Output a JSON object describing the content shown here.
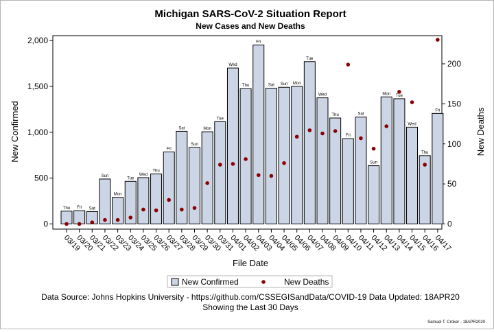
{
  "colors": {
    "bar_fill": "#cbd5e6",
    "bar_stroke": "#000000",
    "death_marker": "#8b0000",
    "axis": "#000000",
    "tick": "#888888"
  },
  "chart_data": {
    "type": "bar",
    "title": "Michigan SARS-CoV-2 Situation Report",
    "subtitle": "New Cases and New Deaths",
    "xlabel": "File Date",
    "ylabel": "New Confirmed",
    "y2label": "New Deaths",
    "ylim": [
      0,
      2000
    ],
    "y2lim": [
      0,
      230
    ],
    "yticks": [
      "0",
      "500",
      "1,000",
      "1,500",
      "2,000"
    ],
    "y2ticks": [
      "0",
      "50",
      "100",
      "150",
      "200"
    ],
    "grid": false,
    "legend_position": "bottom-center",
    "categories": [
      "03/19",
      "03/20",
      "03/21",
      "03/22",
      "03/23",
      "03/24",
      "03/25",
      "03/26",
      "03/27",
      "03/28",
      "03/29",
      "03/30",
      "03/31",
      "04/01",
      "04/02",
      "04/03",
      "04/04",
      "04/05",
      "04/06",
      "04/07",
      "04/08",
      "04/09",
      "04/10",
      "04/11",
      "04/12",
      "04/13",
      "04/14",
      "04/15",
      "04/16",
      "04/17"
    ],
    "weekdays": [
      "Thu",
      "Fri",
      "Sat",
      "Sun",
      "Mon",
      "Tue",
      "Wed",
      "Thu",
      "Fri",
      "Sat",
      "Sun",
      "Mon",
      "Tue",
      "Wed",
      "Thu",
      "Fri",
      "Sat",
      "Sun",
      "Mon",
      "Tue",
      "Wed",
      "Thu",
      "Fri",
      "Sat",
      "Sun",
      "Mon",
      "Tue",
      "Wed",
      "Thu",
      "Fri"
    ],
    "series": [
      {
        "name": "New Confirmed",
        "type": "bar",
        "axis": "left",
        "values": [
          140,
          145,
          135,
          490,
          290,
          465,
          505,
          545,
          785,
          1010,
          835,
          1005,
          1115,
          1700,
          1475,
          1950,
          1480,
          1490,
          1500,
          1770,
          1375,
          1155,
          930,
          1165,
          635,
          1385,
          1365,
          1055,
          745,
          1205
        ]
      },
      {
        "name": "New Deaths",
        "type": "scatter",
        "axis": "right",
        "values": [
          0,
          0,
          2,
          5,
          5,
          8,
          18,
          17,
          30,
          18,
          20,
          51,
          74,
          75,
          81,
          61,
          60,
          76,
          109,
          117,
          113,
          116,
          199,
          107,
          94,
          122,
          165,
          152,
          74,
          230
        ]
      }
    ]
  },
  "footer": {
    "source": "Data Source: Johns Hopkins University - https://github.com/CSSEGISandData/COVID-19 Data Updated: 18APR20",
    "period": "Showing the Last 30 Days",
    "credit": "Samuel T. Croker - 18APR2020"
  }
}
